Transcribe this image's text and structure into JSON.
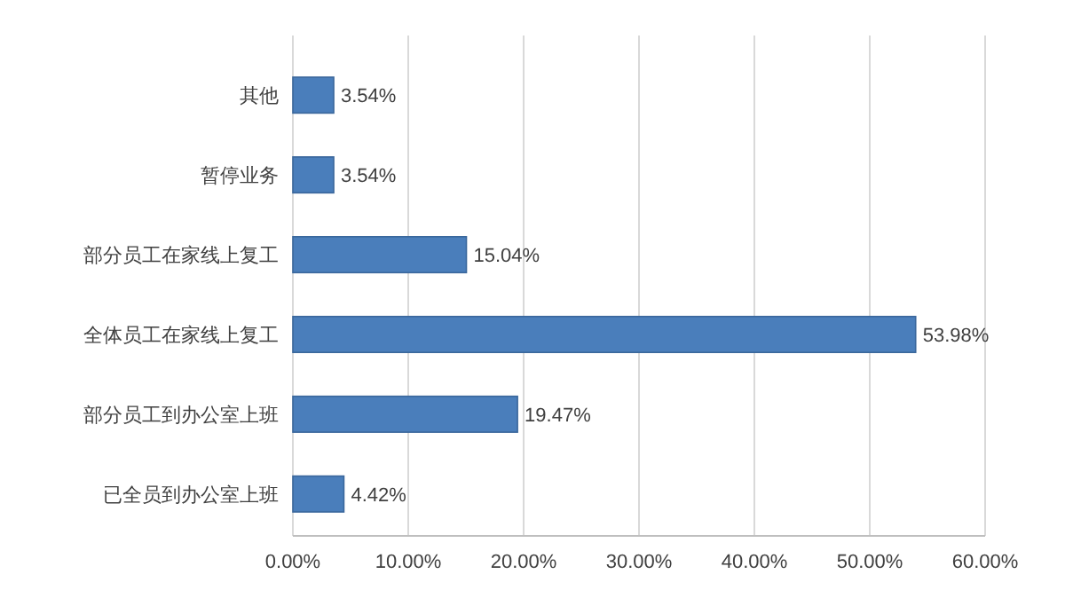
{
  "chart_data": {
    "type": "bar",
    "orientation": "horizontal",
    "categories": [
      "其他",
      "暂停业务",
      "部分员工在家线上复工",
      "全体员工在家线上复工",
      "部分员工到办公室上班",
      "已全员到办公室上班"
    ],
    "values": [
      3.54,
      3.54,
      15.04,
      53.98,
      19.47,
      4.42
    ],
    "value_labels": [
      "3.54%",
      "3.54%",
      "15.04%",
      "53.98%",
      "19.47%",
      "4.42%"
    ],
    "color": "#4a7ebb",
    "xlim": [
      0,
      60
    ],
    "xticks": [
      {
        "value": 0,
        "label": "0.00%"
      },
      {
        "value": 10,
        "label": "10.00%"
      },
      {
        "value": 20,
        "label": "20.00%"
      },
      {
        "value": 30,
        "label": "30.00%"
      },
      {
        "value": 40,
        "label": "40.00%"
      },
      {
        "value": 50,
        "label": "50.00%"
      },
      {
        "value": 60,
        "label": "60.00%"
      }
    ],
    "grid": "x"
  }
}
